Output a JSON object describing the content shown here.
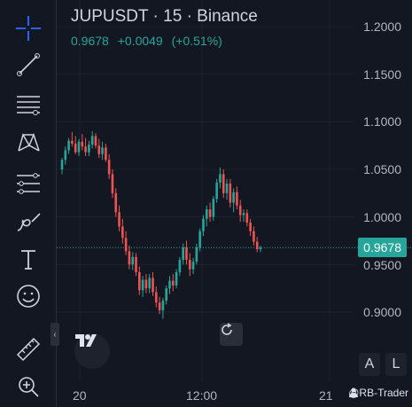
{
  "header": {
    "title": "JUPUSDT · 15 · Binance",
    "price": "0.9678",
    "change": "+0.0049",
    "change_pct": "(+0.51%)"
  },
  "y_axis": {
    "ticks": [
      "1.2000",
      "1.1500",
      "1.1000",
      "1.0500",
      "1.0000",
      "0.9500",
      "0.9000"
    ]
  },
  "x_axis": {
    "ticks": [
      "20",
      "12:00",
      "21"
    ]
  },
  "last_price_tag": "0.9678",
  "buttons": {
    "auto": "A",
    "log": "L"
  },
  "watermark": "@RB-Trader",
  "colors": {
    "up": "#26a69a",
    "down": "#ef5350",
    "background": "#131722"
  },
  "toolbar": {
    "items": [
      "crosshair-icon",
      "trendline-icon",
      "fib-icon",
      "pattern-icon",
      "prediction-icon",
      "brush-icon",
      "text-icon",
      "emoji-icon",
      "ruler-icon",
      "zoom-in-icon"
    ]
  },
  "chart_data": {
    "type": "candlestick",
    "symbol": "JUPUSDT",
    "interval": "15",
    "exchange": "Binance",
    "ylim": [
      0.88,
      1.215
    ],
    "last_price": 0.9678,
    "candles": [
      [
        1.05,
        1.062,
        1.045,
        1.06
      ],
      [
        1.06,
        1.074,
        1.055,
        1.07
      ],
      [
        1.07,
        1.083,
        1.066,
        1.08
      ],
      [
        1.08,
        1.089,
        1.074,
        1.077
      ],
      [
        1.077,
        1.085,
        1.066,
        1.068
      ],
      [
        1.068,
        1.082,
        1.064,
        1.079
      ],
      [
        1.079,
        1.087,
        1.07,
        1.074
      ],
      [
        1.074,
        1.083,
        1.064,
        1.068
      ],
      [
        1.068,
        1.08,
        1.064,
        1.076
      ],
      [
        1.076,
        1.09,
        1.072,
        1.085
      ],
      [
        1.085,
        1.088,
        1.072,
        1.075
      ],
      [
        1.075,
        1.082,
        1.062,
        1.066
      ],
      [
        1.066,
        1.079,
        1.06,
        1.073
      ],
      [
        1.073,
        1.077,
        1.058,
        1.06
      ],
      [
        1.06,
        1.066,
        1.04,
        1.045
      ],
      [
        1.045,
        1.05,
        1.02,
        1.025
      ],
      [
        1.025,
        1.03,
        1.0,
        1.005
      ],
      [
        1.005,
        1.012,
        0.985,
        0.99
      ],
      [
        0.99,
        0.998,
        0.972,
        0.978
      ],
      [
        0.978,
        0.985,
        0.96,
        0.964
      ],
      [
        0.964,
        0.97,
        0.945,
        0.95
      ],
      [
        0.95,
        0.963,
        0.944,
        0.958
      ],
      [
        0.958,
        0.962,
        0.938,
        0.942
      ],
      [
        0.942,
        0.948,
        0.918,
        0.923
      ],
      [
        0.923,
        0.938,
        0.916,
        0.934
      ],
      [
        0.934,
        0.94,
        0.92,
        0.925
      ],
      [
        0.925,
        0.94,
        0.92,
        0.936
      ],
      [
        0.936,
        0.942,
        0.917,
        0.921
      ],
      [
        0.921,
        0.927,
        0.905,
        0.91
      ],
      [
        0.91,
        0.916,
        0.898,
        0.902
      ],
      [
        0.902,
        0.915,
        0.893,
        0.912
      ],
      [
        0.912,
        0.928,
        0.908,
        0.925
      ],
      [
        0.925,
        0.938,
        0.919,
        0.933
      ],
      [
        0.933,
        0.94,
        0.922,
        0.928
      ],
      [
        0.928,
        0.945,
        0.925,
        0.942
      ],
      [
        0.942,
        0.958,
        0.938,
        0.955
      ],
      [
        0.955,
        0.972,
        0.95,
        0.968
      ],
      [
        0.968,
        0.975,
        0.95,
        0.955
      ],
      [
        0.955,
        0.962,
        0.938,
        0.945
      ],
      [
        0.945,
        0.957,
        0.94,
        0.953
      ],
      [
        0.953,
        0.972,
        0.95,
        0.968
      ],
      [
        0.968,
        0.988,
        0.964,
        0.985
      ],
      [
        0.985,
        1.002,
        0.98,
        0.998
      ],
      [
        0.998,
        1.012,
        0.99,
        1.008
      ],
      [
        1.008,
        1.015,
        0.995,
        1.0
      ],
      [
        1.0,
        1.022,
        0.996,
        1.019
      ],
      [
        1.019,
        1.04,
        1.015,
        1.036
      ],
      [
        1.036,
        1.052,
        1.03,
        1.045
      ],
      [
        1.045,
        1.05,
        1.02,
        1.025
      ],
      [
        1.025,
        1.04,
        1.018,
        1.035
      ],
      [
        1.035,
        1.04,
        1.01,
        1.015
      ],
      [
        1.015,
        1.03,
        1.005,
        1.026
      ],
      [
        1.026,
        1.032,
        1.008,
        1.012
      ],
      [
        1.012,
        1.018,
        0.995,
        1.002
      ],
      [
        1.002,
        1.008,
        0.995,
        1.004
      ],
      [
        1.004,
        1.008,
        0.99,
        0.994
      ],
      [
        0.994,
        0.998,
        0.98,
        0.985
      ],
      [
        0.985,
        0.99,
        0.97,
        0.974
      ],
      [
        0.974,
        0.979,
        0.963,
        0.966
      ],
      [
        0.966,
        0.97,
        0.963,
        0.9678
      ]
    ]
  }
}
